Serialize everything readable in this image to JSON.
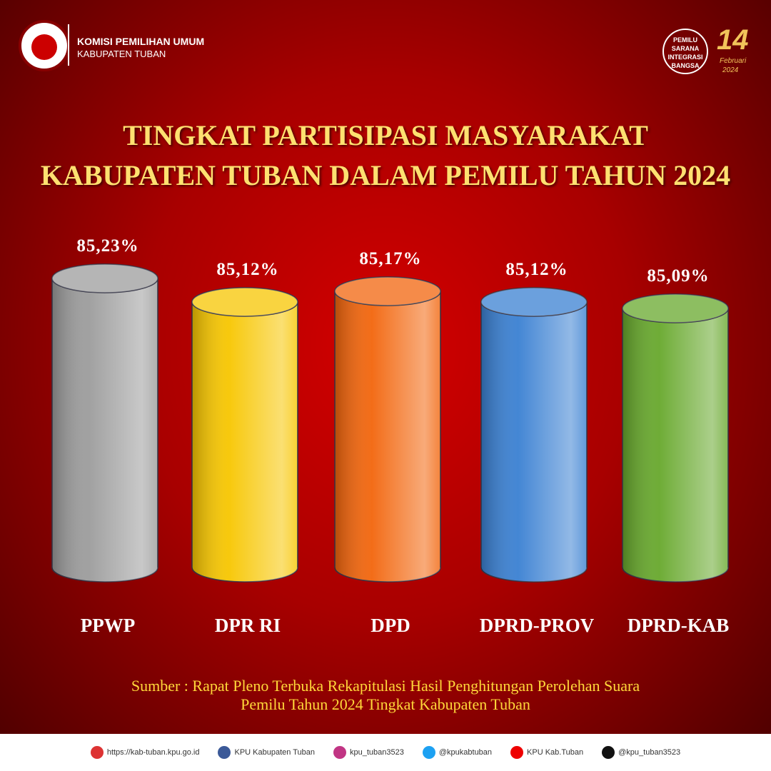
{
  "header": {
    "org": "KOMISI PEMILIHAN UMUM",
    "sub": "KABUPATEN TUBAN",
    "badge": [
      "PEMILU",
      "SARANA",
      "INTEGRASI",
      "BANGSA"
    ],
    "date_day": "14",
    "date_month": "Februari",
    "date_year": "2024"
  },
  "chart_data": {
    "type": "bar",
    "title": [
      "TINGKAT PARTISIPASI MASYARAKAT",
      "KABUPATEN TUBAN DALAM PEMILU TAHUN 2024"
    ],
    "categories": [
      "PPWP",
      "DPR RI",
      "DPD",
      "DPRD-PROV",
      "DPRD-KAB"
    ],
    "values": [
      85.23,
      85.12,
      85.17,
      85.12,
      85.09
    ],
    "value_labels": [
      "85,23%",
      "85,12%",
      "85,17%",
      "85,12%",
      "85,09%"
    ],
    "colors": [
      "#9c9c9c",
      "#f7c600",
      "#f2650c",
      "#3a80d2",
      "#67a82c"
    ]
  },
  "source": [
    "Sumber : Rapat Pleno Terbuka Rekapitulasi Hasil Penghitungan Perolehan Suara",
    "Pemilu Tahun 2024 Tingkat Kabupaten Tuban"
  ],
  "footer": [
    "https://kab-tuban.kpu.go.id",
    "KPU Kabupaten Tuban",
    "kpu_tuban3523",
    "@kpukabtuban",
    "KPU Kab.Tuban",
    "@kpu_tuban3523"
  ]
}
